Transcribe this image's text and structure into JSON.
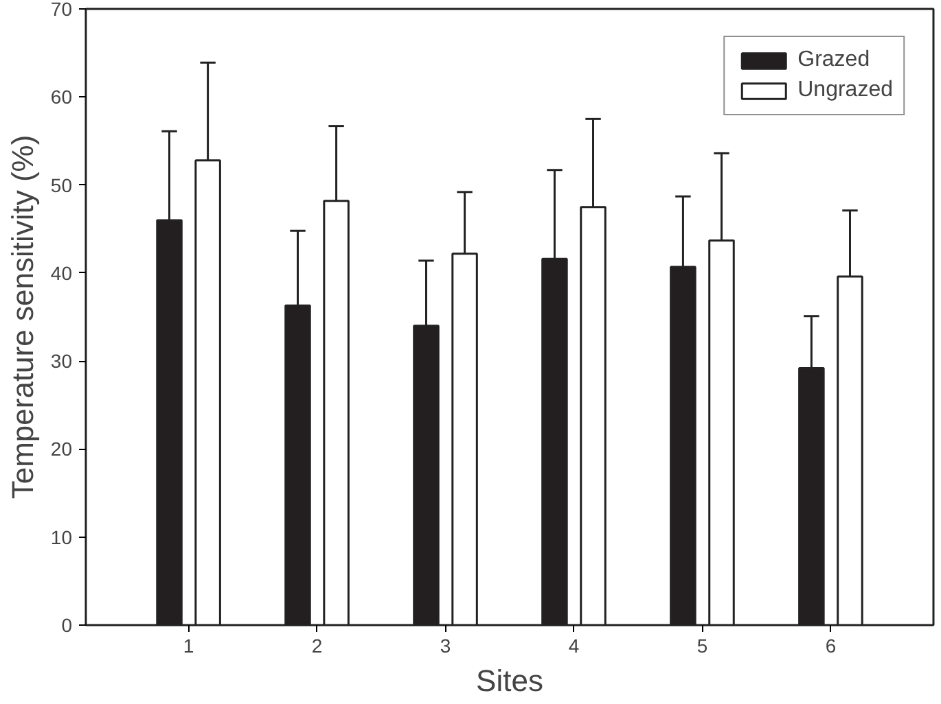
{
  "chart_data": {
    "type": "bar",
    "xlabel": "Sites",
    "ylabel": "Temperature sensitivity (%)",
    "categories": [
      "1",
      "2",
      "3",
      "4",
      "5",
      "6"
    ],
    "series": [
      {
        "name": "Grazed",
        "color": "#231f20",
        "values": [
          46.0,
          36.3,
          34.0,
          41.6,
          40.7,
          29.2
        ],
        "errors": [
          [
            46.0,
            56.1
          ],
          [
            36.3,
            44.8
          ],
          [
            34.0,
            41.4
          ],
          [
            41.6,
            51.7
          ],
          [
            40.7,
            48.7
          ],
          [
            29.2,
            35.1
          ]
        ]
      },
      {
        "name": "Ungrazed",
        "color": "#ffffff",
        "values": [
          52.8,
          48.2,
          42.2,
          47.5,
          43.7,
          39.6
        ],
        "errors": [
          [
            52.8,
            63.9
          ],
          [
            48.2,
            56.7
          ],
          [
            42.2,
            49.2
          ],
          [
            47.5,
            57.5
          ],
          [
            43.7,
            53.6
          ],
          [
            39.6,
            47.1
          ]
        ]
      }
    ],
    "ylim": [
      0,
      70
    ],
    "yticks": [
      0,
      10,
      20,
      30,
      40,
      50,
      60,
      70
    ],
    "grid": false,
    "legend": "top right"
  }
}
